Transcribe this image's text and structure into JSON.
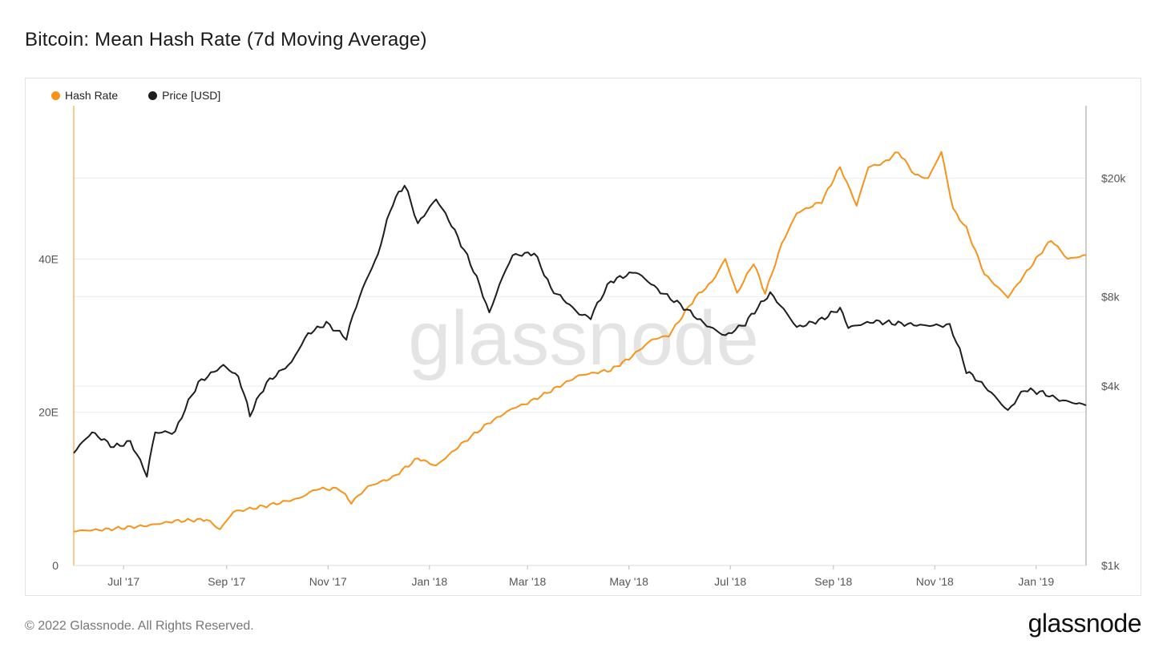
{
  "title": "Bitcoin: Mean Hash Rate (7d Moving Average)",
  "footer": "© 2022 Glassnode. All Rights Reserved.",
  "brand": "glassnode",
  "watermark": "glassnode",
  "colors": {
    "hash_rate": "#f7931a",
    "price": "#1e1e1e",
    "grid": "#ececec",
    "axis": "#9a9a9a"
  },
  "legend": [
    {
      "label": "Hash Rate",
      "color": "#f7931a"
    },
    {
      "label": "Price [USD]",
      "color": "#1e1e1e"
    }
  ],
  "chart_data": {
    "type": "line",
    "title": "Bitcoin: Mean Hash Rate (7d Moving Average)",
    "x_range": [
      "2017-06-01",
      "2019-01-31"
    ],
    "x_ticks": [
      {
        "label": "Jul '17",
        "date": "2017-07-01"
      },
      {
        "label": "Sep '17",
        "date": "2017-09-01"
      },
      {
        "label": "Nov '17",
        "date": "2017-11-01"
      },
      {
        "label": "Jan '18",
        "date": "2018-01-01"
      },
      {
        "label": "Mar '18",
        "date": "2018-03-01"
      },
      {
        "label": "May '18",
        "date": "2018-05-01"
      },
      {
        "label": "Jul '18",
        "date": "2018-07-01"
      },
      {
        "label": "Sep '18",
        "date": "2018-09-01"
      },
      {
        "label": "Nov '18",
        "date": "2018-11-01"
      },
      {
        "label": "Jan '19",
        "date": "2019-01-01"
      }
    ],
    "y_left": {
      "unit": "E",
      "range": [
        0,
        60
      ],
      "ticks": [
        {
          "label": "0",
          "value": 0
        },
        {
          "label": "20E",
          "value": 20
        },
        {
          "label": "40E",
          "value": 40
        }
      ]
    },
    "y_right": {
      "scale": "log",
      "range": [
        1000,
        35000
      ],
      "ticks": [
        {
          "label": "$1k",
          "value": 1000
        },
        {
          "label": "$4k",
          "value": 4000
        },
        {
          "label": "$8k",
          "value": 8000
        },
        {
          "label": "$20k",
          "value": 20000
        }
      ]
    },
    "series": [
      {
        "name": "Hash Rate",
        "axis": "left",
        "points": [
          [
            "2017-06-01",
            4.5
          ],
          [
            "2017-06-20",
            4.7
          ],
          [
            "2017-07-15",
            5.2
          ],
          [
            "2017-08-01",
            5.8
          ],
          [
            "2017-08-20",
            6.0
          ],
          [
            "2017-08-28",
            4.7
          ],
          [
            "2017-09-05",
            7.0
          ],
          [
            "2017-09-25",
            7.8
          ],
          [
            "2017-10-15",
            8.8
          ],
          [
            "2017-10-25",
            10.0
          ],
          [
            "2017-11-08",
            10.0
          ],
          [
            "2017-11-15",
            8.2
          ],
          [
            "2017-11-25",
            10.3
          ],
          [
            "2017-12-10",
            11.5
          ],
          [
            "2017-12-25",
            14.0
          ],
          [
            "2018-01-05",
            13.0
          ],
          [
            "2018-01-20",
            15.8
          ],
          [
            "2018-02-05",
            18.5
          ],
          [
            "2018-02-20",
            20.5
          ],
          [
            "2018-03-01",
            21.2
          ],
          [
            "2018-03-15",
            22.8
          ],
          [
            "2018-04-01",
            24.8
          ],
          [
            "2018-04-20",
            25.5
          ],
          [
            "2018-05-01",
            27.0
          ],
          [
            "2018-05-15",
            29.5
          ],
          [
            "2018-05-25",
            30.0
          ],
          [
            "2018-06-10",
            35.0
          ],
          [
            "2018-06-20",
            37.0
          ],
          [
            "2018-06-28",
            40.0
          ],
          [
            "2018-07-05",
            35.5
          ],
          [
            "2018-07-15",
            39.5
          ],
          [
            "2018-07-22",
            35.5
          ],
          [
            "2018-08-01",
            42.0
          ],
          [
            "2018-08-10",
            46.0
          ],
          [
            "2018-08-25",
            47.5
          ],
          [
            "2018-09-05",
            52.0
          ],
          [
            "2018-09-15",
            47.0
          ],
          [
            "2018-09-22",
            52.0
          ],
          [
            "2018-10-01",
            52.5
          ],
          [
            "2018-10-10",
            54.0
          ],
          [
            "2018-10-20",
            51.0
          ],
          [
            "2018-10-28",
            50.5
          ],
          [
            "2018-11-05",
            54.0
          ],
          [
            "2018-11-12",
            46.5
          ],
          [
            "2018-11-20",
            44.0
          ],
          [
            "2018-12-01",
            38.0
          ],
          [
            "2018-12-15",
            35.0
          ],
          [
            "2019-01-01",
            40.0
          ],
          [
            "2019-01-10",
            42.5
          ],
          [
            "2019-01-20",
            40.0
          ],
          [
            "2019-01-31",
            40.5
          ]
        ]
      },
      {
        "name": "Price [USD]",
        "axis": "right",
        "points": [
          [
            "2017-06-01",
            2400
          ],
          [
            "2017-06-12",
            2800
          ],
          [
            "2017-06-25",
            2500
          ],
          [
            "2017-07-05",
            2600
          ],
          [
            "2017-07-15",
            2000
          ],
          [
            "2017-07-20",
            2800
          ],
          [
            "2017-08-01",
            2800
          ],
          [
            "2017-08-15",
            4100
          ],
          [
            "2017-08-30",
            4700
          ],
          [
            "2017-09-08",
            4300
          ],
          [
            "2017-09-15",
            3200
          ],
          [
            "2017-09-25",
            4100
          ],
          [
            "2017-10-10",
            4800
          ],
          [
            "2017-10-20",
            6000
          ],
          [
            "2017-10-31",
            6500
          ],
          [
            "2017-11-12",
            5800
          ],
          [
            "2017-11-20",
            8000
          ],
          [
            "2017-12-01",
            11000
          ],
          [
            "2017-12-10",
            16500
          ],
          [
            "2017-12-17",
            19000
          ],
          [
            "2017-12-25",
            14000
          ],
          [
            "2018-01-05",
            17000
          ],
          [
            "2018-01-20",
            12000
          ],
          [
            "2018-02-06",
            7000
          ],
          [
            "2018-02-20",
            11000
          ],
          [
            "2018-03-05",
            11200
          ],
          [
            "2018-03-15",
            8500
          ],
          [
            "2018-04-01",
            7000
          ],
          [
            "2018-04-08",
            6800
          ],
          [
            "2018-04-20",
            9000
          ],
          [
            "2018-05-05",
            9700
          ],
          [
            "2018-05-20",
            8300
          ],
          [
            "2018-06-01",
            7500
          ],
          [
            "2018-06-15",
            6500
          ],
          [
            "2018-06-28",
            5900
          ],
          [
            "2018-07-10",
            6500
          ],
          [
            "2018-07-25",
            8200
          ],
          [
            "2018-08-10",
            6300
          ],
          [
            "2018-08-25",
            6700
          ],
          [
            "2018-09-05",
            7300
          ],
          [
            "2018-09-10",
            6300
          ],
          [
            "2018-09-25",
            6600
          ],
          [
            "2018-10-10",
            6500
          ],
          [
            "2018-10-25",
            6400
          ],
          [
            "2018-11-10",
            6400
          ],
          [
            "2018-11-20",
            4500
          ],
          [
            "2018-12-01",
            4000
          ],
          [
            "2018-12-15",
            3300
          ],
          [
            "2018-12-25",
            3900
          ],
          [
            "2019-01-05",
            3800
          ],
          [
            "2019-01-15",
            3600
          ],
          [
            "2019-01-31",
            3450
          ]
        ]
      }
    ]
  }
}
